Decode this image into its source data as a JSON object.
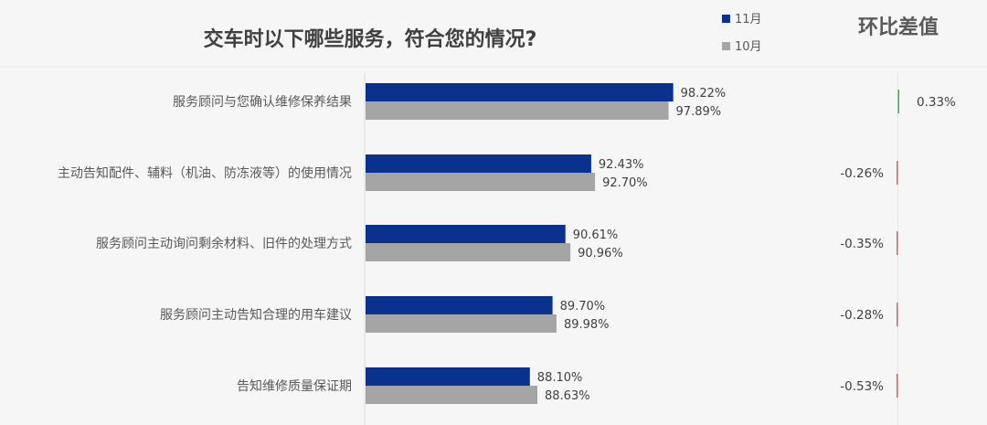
{
  "chart_data": {
    "type": "bar",
    "orientation": "horizontal",
    "title": "交车时以下哪些服务，符合您的情况?",
    "categories": [
      "服务顾问与您确认维修保养结果",
      "主动告知配件、辅料（机油、防冻液等）的使用情况",
      "服务顾问主动询问剩余材料、旧件的处理方式",
      "服务顾问主动告知合理的用车建议",
      "告知维修质量保证期"
    ],
    "series": [
      {
        "name": "11月",
        "color": "#0b318f",
        "values": [
          98.22,
          92.43,
          90.61,
          89.7,
          88.1
        ],
        "labels": [
          "98.22%",
          "92.43%",
          "90.61%",
          "89.70%",
          "88.10%"
        ]
      },
      {
        "name": "10月",
        "color": "#a5a5a5",
        "values": [
          97.89,
          92.7,
          90.96,
          89.98,
          88.63
        ],
        "labels": [
          "97.89%",
          "92.70%",
          "90.96%",
          "89.98%",
          "88.63%"
        ]
      }
    ],
    "x_axis_min": 76.5,
    "legend_position": "top-right",
    "diff": {
      "title": "环比差值",
      "values": [
        0.33,
        -0.26,
        -0.35,
        -0.28,
        -0.53
      ],
      "labels": [
        "0.33%",
        "-0.26%",
        "-0.35%",
        "-0.28%",
        "-0.53%"
      ],
      "positive_color": "#2fb34a",
      "negative_color": "#e06666"
    },
    "grid": false
  }
}
